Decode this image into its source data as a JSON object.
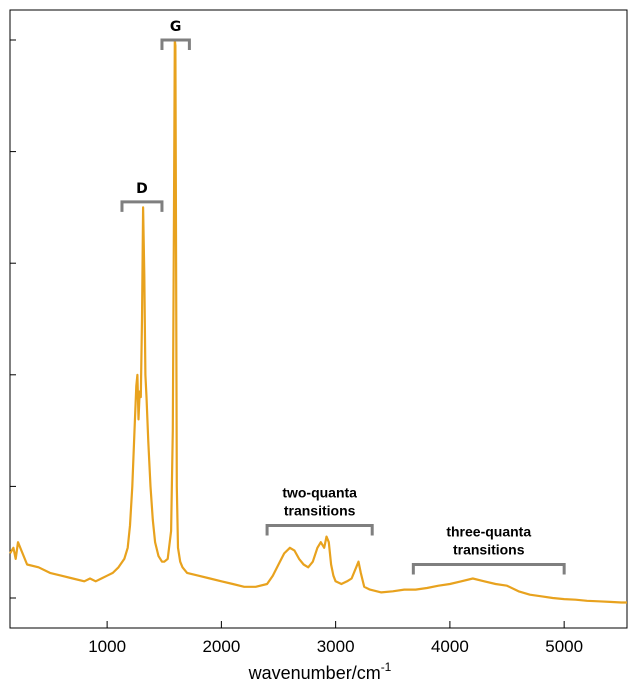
{
  "chart_data": {
    "type": "line",
    "title": "",
    "xlabel": "wavenumber/cm",
    "xlabel_superscript": "-1",
    "ylabel": "",
    "xlim": [
      150,
      5550
    ],
    "ylim": [
      -0.05,
      1.0
    ],
    "x_ticks": [
      1000,
      2000,
      3000,
      4000,
      5000
    ],
    "x_tick_labels": [
      "1000",
      "2000",
      "3000",
      "4000",
      "5000"
    ],
    "y_ticks": [
      0.0,
      0.2,
      0.4,
      0.6,
      0.8,
      1.0
    ],
    "grid": false,
    "legend": "none",
    "series_color": "#e8a21e",
    "bracket_color": "#7f7f7f",
    "series": [
      {
        "x": [
          150,
          180,
          200,
          220,
          300,
          400,
          500,
          600,
          700,
          800,
          850,
          900,
          950,
          1000,
          1050,
          1100,
          1150,
          1180,
          1200,
          1220,
          1240,
          1255,
          1265,
          1275,
          1285,
          1295,
          1305,
          1315,
          1325,
          1335,
          1345,
          1360,
          1380,
          1400,
          1420,
          1450,
          1480,
          1500,
          1530,
          1560,
          1575,
          1585,
          1592,
          1598,
          1604,
          1610,
          1620,
          1640,
          1660,
          1700,
          1800,
          1900,
          2000,
          2100,
          2200,
          2300,
          2400,
          2450,
          2500,
          2550,
          2600,
          2640,
          2680,
          2720,
          2760,
          2800,
          2840,
          2870,
          2900,
          2920,
          2940,
          2960,
          2980,
          3000,
          3050,
          3100,
          3140,
          3180,
          3200,
          3220,
          3250,
          3300,
          3400,
          3500,
          3600,
          3700,
          3800,
          3900,
          4000,
          4100,
          4200,
          4300,
          4400,
          4500,
          4600,
          4700,
          4800,
          4900,
          5000,
          5100,
          5200,
          5300,
          5400,
          5500,
          5550
        ],
        "y": [
          0.08,
          0.09,
          0.07,
          0.1,
          0.06,
          0.055,
          0.045,
          0.04,
          0.035,
          0.03,
          0.035,
          0.03,
          0.035,
          0.04,
          0.045,
          0.055,
          0.07,
          0.09,
          0.13,
          0.2,
          0.3,
          0.38,
          0.4,
          0.32,
          0.37,
          0.36,
          0.5,
          0.7,
          0.58,
          0.4,
          0.36,
          0.28,
          0.2,
          0.14,
          0.1,
          0.075,
          0.065,
          0.065,
          0.07,
          0.12,
          0.3,
          0.7,
          1.0,
          0.99,
          0.6,
          0.2,
          0.09,
          0.065,
          0.055,
          0.045,
          0.04,
          0.035,
          0.03,
          0.025,
          0.02,
          0.02,
          0.025,
          0.04,
          0.06,
          0.08,
          0.09,
          0.085,
          0.07,
          0.06,
          0.055,
          0.065,
          0.09,
          0.1,
          0.09,
          0.11,
          0.1,
          0.06,
          0.04,
          0.03,
          0.025,
          0.03,
          0.035,
          0.055,
          0.065,
          0.045,
          0.02,
          0.015,
          0.01,
          0.012,
          0.015,
          0.015,
          0.018,
          0.022,
          0.025,
          0.03,
          0.035,
          0.03,
          0.025,
          0.022,
          0.012,
          0.006,
          0.003,
          0.0,
          -0.002,
          -0.003,
          -0.005,
          -0.006,
          -0.007,
          -0.008,
          -0.008
        ]
      }
    ],
    "annotations": [
      {
        "label": "G",
        "x_range": [
          1480,
          1720
        ],
        "level": 1.0
      },
      {
        "label": "D",
        "x_range": [
          1130,
          1480
        ],
        "level": 0.71
      },
      {
        "label": "two-quanta",
        "label2": "transitions",
        "x_range": [
          2400,
          3320
        ],
        "level": 0.13
      },
      {
        "label": "three-quanta",
        "label2": "transitions",
        "x_range": [
          3680,
          5000
        ],
        "level": 0.06
      }
    ]
  }
}
